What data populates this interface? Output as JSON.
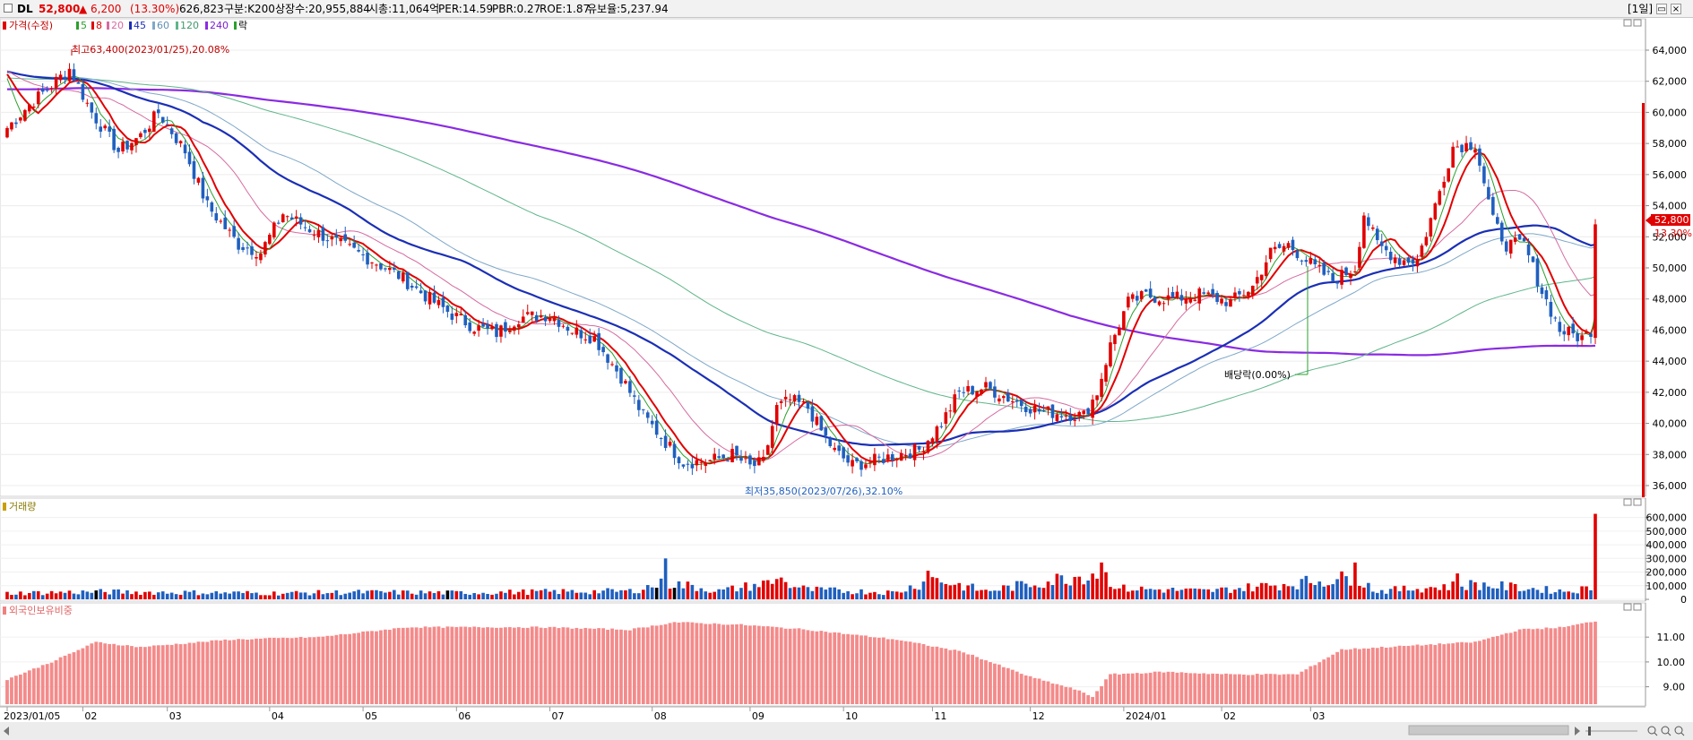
{
  "header": {
    "ticker": "DL",
    "price": "52,800",
    "change": "▲ 6,200",
    "change_pct": "(13.30%)",
    "volume": "626,823",
    "category": "구분:K200",
    "shares": "상장수:20,955,884",
    "market_cap": "시총:11,064억",
    "per": "PER:14.59",
    "pbr": "PBR:0.27",
    "roe": "ROE:1.87",
    "float": "유보율:5,237.94",
    "period": "[1일]",
    "up_color": "#e10000",
    "down_color": "#1f5fbf"
  },
  "legend": {
    "price": "가격(수정)",
    "ma5": "5",
    "ma8": "8",
    "ma20": "20",
    "ma45": "45",
    "ma60": "60",
    "ma120": "120",
    "ma240": "240",
    "exdiv": "락"
  },
  "annotations": {
    "high": "최고63,400(2023/01/25),20.08%",
    "low": "최저35,850(2023/07/26),32.10%",
    "dividend": "배당락(0.00%)",
    "last_price": "52,800",
    "last_pct": "13.30%"
  },
  "volume_panel": {
    "title": "거래량"
  },
  "foreign_panel": {
    "title": "외국인보유비중"
  },
  "chart_data": {
    "type": "candlestick",
    "price_axis": {
      "ticks": [
        "64,000",
        "62,000",
        "60,000",
        "58,000",
        "56,000",
        "54,000",
        "52,000",
        "50,000",
        "48,000",
        "46,000",
        "44,000",
        "42,000",
        "40,000",
        "38,000",
        "36,000"
      ],
      "ylim": [
        35000,
        65000
      ]
    },
    "volume_axis": {
      "ticks": [
        "600,000",
        "500,000",
        "400,000",
        "300,000",
        "200,000",
        "100,000",
        "0"
      ],
      "ylim": [
        0,
        650000
      ]
    },
    "foreign_axis": {
      "ticks": [
        "11.00",
        "10.00",
        "9.00"
      ],
      "ylim": [
        8.3,
        11.8
      ]
    },
    "x_labels": [
      "2023/01/05",
      "02",
      "03",
      "04",
      "05",
      "06",
      "07",
      "08",
      "09",
      "10",
      "11",
      "12",
      "2024/01",
      "02",
      "03"
    ],
    "anchors": [
      [
        0,
        59000
      ],
      [
        5,
        60500
      ],
      [
        9,
        61500
      ],
      [
        14,
        62800
      ],
      [
        19,
        60000
      ],
      [
        25,
        57500
      ],
      [
        30,
        58500
      ],
      [
        34,
        60000
      ],
      [
        40,
        57500
      ],
      [
        45,
        54000
      ],
      [
        52,
        51500
      ],
      [
        57,
        51000
      ],
      [
        62,
        53500
      ],
      [
        68,
        52500
      ],
      [
        75,
        51500
      ],
      [
        82,
        50500
      ],
      [
        88,
        49500
      ],
      [
        95,
        48000
      ],
      [
        100,
        47000
      ],
      [
        105,
        46200
      ],
      [
        110,
        45800
      ],
      [
        115,
        46800
      ],
      [
        122,
        47000
      ],
      [
        127,
        46000
      ],
      [
        132,
        45500
      ],
      [
        138,
        43000
      ],
      [
        143,
        40500
      ],
      [
        148,
        38800
      ],
      [
        152,
        37500
      ],
      [
        158,
        37600
      ],
      [
        163,
        38000
      ],
      [
        167,
        37200
      ],
      [
        170,
        37500
      ],
      [
        173,
        41000
      ],
      [
        176,
        41500
      ],
      [
        180,
        41000
      ],
      [
        183,
        39500
      ],
      [
        186,
        38200
      ],
      [
        190,
        37300
      ],
      [
        195,
        37600
      ],
      [
        200,
        38000
      ],
      [
        205,
        38300
      ],
      [
        210,
        40000
      ],
      [
        214,
        42000
      ],
      [
        220,
        42300
      ],
      [
        226,
        41500
      ],
      [
        232,
        40800
      ],
      [
        238,
        40600
      ],
      [
        242,
        40500
      ],
      [
        245,
        42000
      ],
      [
        248,
        45000
      ],
      [
        252,
        47800
      ],
      [
        256,
        48200
      ],
      [
        262,
        48000
      ],
      [
        268,
        48300
      ],
      [
        275,
        47800
      ],
      [
        280,
        48800
      ],
      [
        284,
        51000
      ],
      [
        288,
        51500
      ],
      [
        294,
        50000
      ],
      [
        298,
        49200
      ],
      [
        303,
        50000
      ],
      [
        305,
        53500
      ],
      [
        308,
        51500
      ],
      [
        313,
        50500
      ],
      [
        317,
        50500
      ],
      [
        321,
        54000
      ],
      [
        325,
        57800
      ],
      [
        330,
        58000
      ],
      [
        332,
        55500
      ],
      [
        334,
        53000
      ],
      [
        337,
        51500
      ],
      [
        341,
        51500
      ],
      [
        345,
        48500
      ],
      [
        349,
        46000
      ],
      [
        354,
        45500
      ],
      [
        356,
        46000
      ],
      [
        357,
        52800
      ]
    ],
    "volume_anchors": [
      [
        0,
        45000
      ],
      [
        20,
        55000
      ],
      [
        40,
        50000
      ],
      [
        60,
        45000
      ],
      [
        80,
        52000
      ],
      [
        100,
        48000
      ],
      [
        120,
        55000
      ],
      [
        140,
        60000
      ],
      [
        148,
        120000
      ],
      [
        155,
        90000
      ],
      [
        160,
        60000
      ],
      [
        173,
        130000
      ],
      [
        180,
        70000
      ],
      [
        200,
        50000
      ],
      [
        208,
        150000
      ],
      [
        220,
        60000
      ],
      [
        246,
        200000
      ],
      [
        250,
        80000
      ],
      [
        270,
        60000
      ],
      [
        303,
        160000
      ],
      [
        308,
        60000
      ],
      [
        330,
        110000
      ],
      [
        350,
        60000
      ],
      [
        356,
        80000
      ]
    ],
    "volume_spikes": [
      [
        148,
        300000
      ],
      [
        174,
        160000
      ],
      [
        207,
        210000
      ],
      [
        246,
        270000
      ],
      [
        303,
        270000
      ],
      [
        326,
        190000
      ],
      [
        357,
        626823
      ]
    ],
    "foreign_anchors": [
      [
        0,
        9.3
      ],
      [
        10,
        10.0
      ],
      [
        20,
        10.8
      ],
      [
        30,
        10.6
      ],
      [
        50,
        10.9
      ],
      [
        70,
        11.0
      ],
      [
        90,
        11.4
      ],
      [
        120,
        11.4
      ],
      [
        140,
        11.3
      ],
      [
        150,
        11.6
      ],
      [
        165,
        11.5
      ],
      [
        180,
        11.3
      ],
      [
        200,
        10.9
      ],
      [
        215,
        10.4
      ],
      [
        230,
        9.4
      ],
      [
        240,
        8.9
      ],
      [
        244,
        8.6
      ],
      [
        248,
        9.5
      ],
      [
        260,
        9.6
      ],
      [
        275,
        9.5
      ],
      [
        290,
        9.5
      ],
      [
        300,
        10.5
      ],
      [
        310,
        10.6
      ],
      [
        330,
        10.8
      ],
      [
        340,
        11.3
      ],
      [
        350,
        11.4
      ],
      [
        357,
        11.65
      ]
    ],
    "xlabel": "",
    "ylabel": "",
    "grid": true,
    "legend_placement": "top-left"
  }
}
